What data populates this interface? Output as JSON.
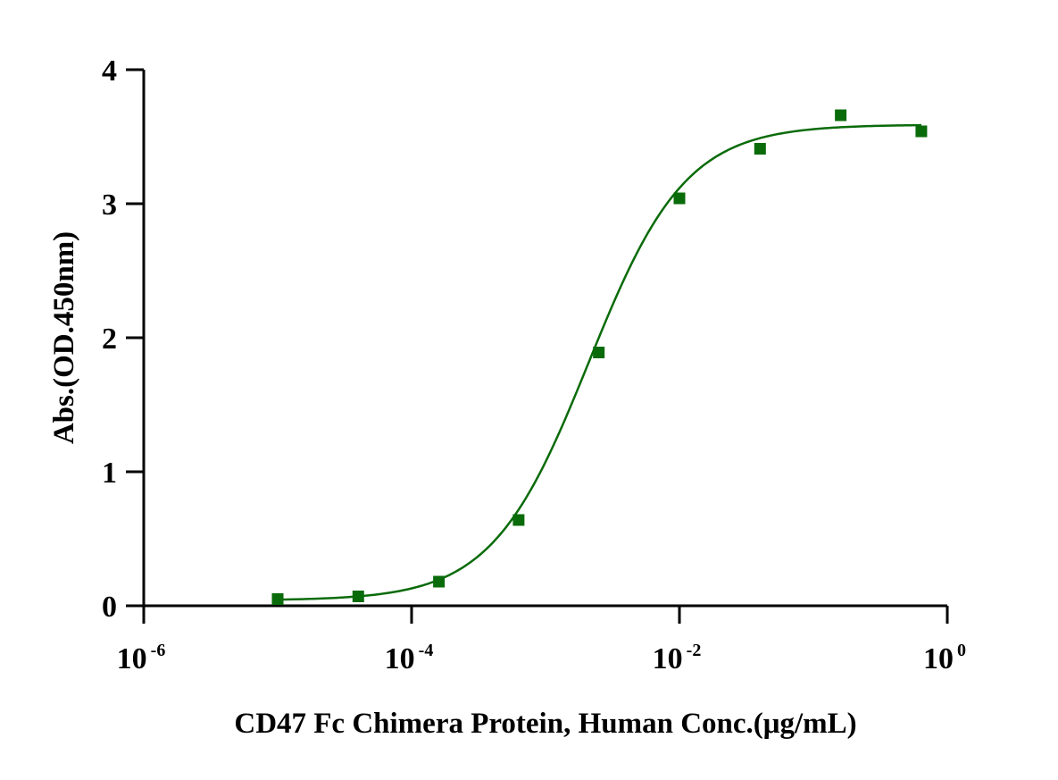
{
  "chart_data": {
    "type": "scatter",
    "xlabel": "CD47 Fc Chimera Protein, Human Conc.(μg/mL)",
    "ylabel": "Abs.(OD.450nm)",
    "x_scale": "log",
    "xlim": [
      1e-06,
      1
    ],
    "ylim": [
      0,
      4
    ],
    "grid": false,
    "x_ticks": [
      {
        "value": 1e-06,
        "base": "10",
        "exp": "-6"
      },
      {
        "value": 0.0001,
        "base": "10",
        "exp": "-4"
      },
      {
        "value": 0.01,
        "base": "10",
        "exp": "-2"
      },
      {
        "value": 1,
        "base": "10",
        "exp": "0"
      }
    ],
    "y_ticks": [
      {
        "value": 0,
        "label": "0"
      },
      {
        "value": 1,
        "label": "1"
      },
      {
        "value": 2,
        "label": "2"
      },
      {
        "value": 3,
        "label": "3"
      },
      {
        "value": 4,
        "label": "4"
      }
    ],
    "series": [
      {
        "marker": "square",
        "color": "#0a6b0a",
        "points": [
          {
            "x": 1e-05,
            "y": 0.05
          },
          {
            "x": 4e-05,
            "y": 0.07
          },
          {
            "x": 0.00016,
            "y": 0.18
          },
          {
            "x": 0.00063,
            "y": 0.64
          },
          {
            "x": 0.0025,
            "y": 1.89
          },
          {
            "x": 0.01,
            "y": 3.04
          },
          {
            "x": 0.04,
            "y": 3.41
          },
          {
            "x": 0.16,
            "y": 3.66
          },
          {
            "x": 0.64,
            "y": 3.54
          }
        ],
        "fit": {
          "model": "4PL",
          "bottom": 0.04,
          "top": 3.59,
          "ec50": 0.0021,
          "hill": 1.2
        }
      }
    ]
  }
}
